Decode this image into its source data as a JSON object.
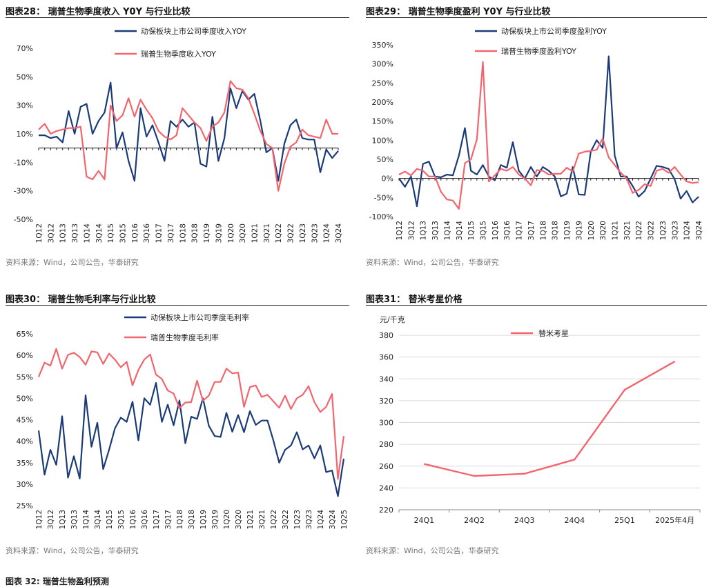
{
  "colors": {
    "navy": "#1a3a78",
    "red": "#f4646c"
  },
  "charts": [
    {
      "title": "图表28：  瑞普生物季度收入 Y0Y 与行业比较",
      "source": "资料来源：Wind，公司公告，华泰研究",
      "chart_data": {
        "type": "line",
        "title": "瑞普生物季度收入 Y0Y 与行业比较",
        "ylim": [
          -50,
          70
        ],
        "yticks": [
          70,
          50,
          30,
          10,
          -10,
          -30,
          -50
        ],
        "ytick_labels": [
          "70%",
          "50%",
          "30%",
          "10%",
          "-10%",
          "-30%",
          "-50%"
        ],
        "tick_labels": [
          "1Q12",
          "3Q12",
          "1Q13",
          "3Q13",
          "1Q14",
          "3Q14",
          "1Q15",
          "3Q15",
          "1Q16",
          "3Q16",
          "1Q17",
          "3Q17",
          "1Q18",
          "3Q18",
          "1Q19",
          "3Q19",
          "1Q20",
          "3Q20",
          "1Q21",
          "3Q21",
          "1Q22",
          "3Q22",
          "1Q23",
          "3Q23",
          "1Q24",
          "3Q24"
        ],
        "series": [
          {
            "name": "动保板块上市公司季度收入YOY",
            "color": "#1a3a78",
            "values": [
              9,
              9,
              7,
              8,
              4,
              26,
              10,
              29,
              31,
              10,
              19,
              25,
              46,
              0,
              11,
              -9,
              -23,
              28,
              8,
              16,
              4,
              -9,
              19,
              15,
              20,
              15,
              18,
              -11,
              -13,
              22,
              -9,
              7,
              42,
              28,
              40,
              34,
              38,
              19,
              -3,
              0,
              -23,
              3,
              16,
              20,
              7,
              6,
              6,
              -17,
              -1,
              -7,
              -2
            ]
          },
          {
            "name": "瑞普生物季度收入YOY",
            "color": "#f4646c",
            "values": [
              13,
              17,
              10,
              12,
              13,
              14,
              14,
              15,
              -20,
              -22,
              -16,
              -22,
              30,
              19,
              23,
              35,
              22,
              34,
              27,
              21,
              12,
              8,
              6,
              9,
              28,
              23,
              18,
              14,
              5,
              15,
              18,
              25,
              47,
              42,
              41,
              35,
              24,
              12,
              3,
              0,
              -30,
              -11,
              1,
              4,
              13,
              9,
              8,
              7,
              20,
              10,
              10
            ]
          }
        ]
      }
    },
    {
      "title": "图表29：  瑞普生物季度盈利 Y0Y 与行业比较",
      "source": "资料来源：Wind，公司公告，华泰研究",
      "chart_data": {
        "type": "line",
        "title": "瑞普生物季度盈利 Y0Y 与行业比较",
        "ylim": [
          -100,
          350
        ],
        "yticks": [
          350,
          300,
          250,
          200,
          150,
          100,
          50,
          0,
          -50,
          -100
        ],
        "ytick_labels": [
          "350%",
          "300%",
          "250%",
          "200%",
          "150%",
          "100%",
          "50%",
          "0%",
          "-50%",
          "-100%"
        ],
        "tick_labels": [
          "1Q12",
          "3Q12",
          "1Q13",
          "3Q13",
          "1Q14",
          "3Q14",
          "1Q15",
          "3Q15",
          "1Q16",
          "3Q16",
          "1Q17",
          "3Q17",
          "1Q18",
          "3Q18",
          "1Q19",
          "3Q19",
          "1Q20",
          "3Q20",
          "1Q21",
          "3Q21",
          "1Q22",
          "3Q22",
          "1Q23",
          "3Q23",
          "1Q24",
          "3Q24"
        ],
        "series": [
          {
            "name": "动保板块上市公司季度盈利YOY",
            "color": "#1a3a78",
            "values": [
              0,
              -22,
              5,
              -73,
              38,
              44,
              5,
              3,
              10,
              8,
              60,
              132,
              20,
              10,
              35,
              5,
              -5,
              35,
              28,
              95,
              20,
              0,
              30,
              5,
              30,
              20,
              5,
              -47,
              -40,
              30,
              -42,
              -43,
              70,
              100,
              80,
              320,
              60,
              5,
              5,
              -20,
              -48,
              -33,
              0,
              33,
              30,
              25,
              -2,
              -53,
              -33,
              -63,
              -48
            ]
          },
          {
            "name": "瑞普生物季度盈利YOY",
            "color": "#f4646c",
            "values": [
              10,
              18,
              8,
              25,
              20,
              5,
              5,
              -35,
              -55,
              -58,
              -80,
              40,
              50,
              102,
              305,
              -8,
              8,
              25,
              20,
              30,
              10,
              0,
              -18,
              22,
              20,
              10,
              12,
              12,
              28,
              18,
              65,
              70,
              72,
              75,
              105,
              55,
              35,
              15,
              0,
              -38,
              -30,
              -15,
              -20,
              20,
              25,
              15,
              30,
              10,
              -8,
              -12,
              -10
            ]
          }
        ]
      }
    },
    {
      "title": "图表30：  瑞普生物毛利率与行业比较",
      "source": "资料来源：Wind，公司公告，华泰研究",
      "chart_data": {
        "type": "line",
        "title": "瑞普生物毛利率与行业比较",
        "ylim": [
          25,
          65
        ],
        "yticks": [
          65,
          60,
          55,
          50,
          45,
          40,
          35,
          30,
          25
        ],
        "ytick_labels": [
          "65%",
          "60%",
          "55%",
          "50%",
          "45%",
          "40%",
          "35%",
          "30%",
          "25%"
        ],
        "tick_labels": [
          "1Q12",
          "3Q12",
          "1Q13",
          "3Q13",
          "1Q14",
          "3Q14",
          "1Q15",
          "3Q15",
          "1Q16",
          "3Q16",
          "1Q17",
          "3Q17",
          "1Q18",
          "3Q18",
          "1Q19",
          "3Q19",
          "1Q20",
          "3Q20",
          "1Q21",
          "3Q21",
          "1Q22",
          "3Q22",
          "1Q23",
          "3Q23",
          "1Q24",
          "3Q24",
          "1Q25"
        ],
        "series": [
          {
            "name": "动保板块上市公司季度毛利率",
            "color": "#1a3a78",
            "values": [
              42.5,
              32.2,
              38,
              34.5,
              45.8,
              31.5,
              36.5,
              31.3,
              50.7,
              38.7,
              44.3,
              33.5,
              38,
              43,
              45.5,
              44.5,
              49.2,
              40.2,
              50,
              48.5,
              53.6,
              44.5,
              48.5,
              43.7,
              49.5,
              39.5,
              45.7,
              45.2,
              50,
              43.6,
              41.2,
              41,
              46.6,
              42.2,
              46.1,
              42.1,
              47,
              43.8,
              44.8,
              44.8,
              40.2,
              35,
              38,
              39,
              42.1,
              38.1,
              39,
              36,
              39,
              32.8,
              33.2,
              27.2,
              35.9
            ]
          },
          {
            "name": "瑞普生物季度毛利率",
            "color": "#f4646c",
            "values": [
              55,
              58.3,
              57.6,
              61.5,
              56.9,
              60.1,
              60.6,
              59.6,
              57.8,
              60.9,
              60.7,
              58,
              60.4,
              59,
              57.2,
              58.5,
              53,
              56.6,
              59,
              60.2,
              55.5,
              54.5,
              51.8,
              51.1,
              47.7,
              49,
              49.1,
              54.1,
              49.4,
              50.6,
              53.8,
              53.8,
              56.9,
              55.8,
              56,
              48,
              52.6,
              53,
              50.3,
              50.8,
              49.3,
              47.8,
              50.6,
              47.5,
              50,
              50.8,
              52.8,
              49.1,
              46.8,
              48,
              51,
              31.2,
              41.2
            ]
          }
        ]
      }
    },
    {
      "title": "图表31：  替米考星价格",
      "source": "资料来源：Wind，公司公告，华泰研究",
      "chart_data": {
        "type": "line",
        "title": "替米考星价格",
        "ylabel": "元/千克",
        "ylim": [
          220,
          380
        ],
        "yticks": [
          380,
          360,
          340,
          320,
          300,
          280,
          260,
          240,
          220
        ],
        "categories": [
          "24Q1",
          "24Q2",
          "24Q3",
          "24Q4",
          "25Q1",
          "2025年4月"
        ],
        "series": [
          {
            "name": "替米考星",
            "color": "#f4646c",
            "values": [
              262,
              251,
              253,
              266,
              330,
              356
            ]
          }
        ]
      }
    }
  ],
  "footer": "图表 32:  瑞普生物盈利预测"
}
